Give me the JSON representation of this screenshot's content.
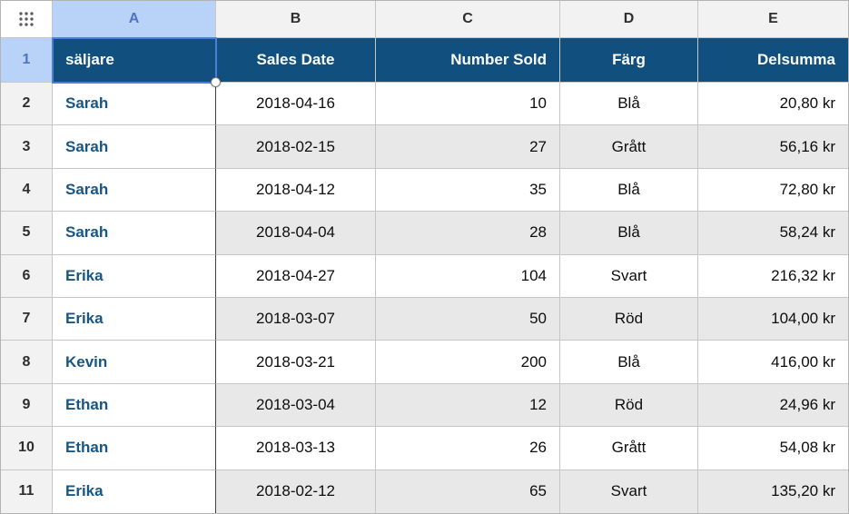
{
  "app": "spreadsheet",
  "colors": {
    "header_fill": "#11507E",
    "header_text": "#FFFFFF",
    "selected_frame_fill": "#B9D2F8",
    "selected_frame_text": "#4E74BE",
    "frame_fill": "#F2F2F3",
    "stripe_fill": "#E8E8E9",
    "name_text_blue": "#175685",
    "selection_blue": "#4C7DE0"
  },
  "frame": {
    "corner_icon": "table-handle-icon",
    "column_letters": [
      "A",
      "B",
      "C",
      "D",
      "E"
    ],
    "selected_column": "A",
    "row_numbers": [
      1,
      2,
      3,
      4,
      5,
      6,
      7,
      8,
      9,
      10,
      11
    ],
    "selected_row": 1,
    "selected_cell": "A1"
  },
  "table": {
    "headers": [
      "säljare",
      "Sales Date",
      "Number Sold",
      "Färg",
      "Delsumma"
    ],
    "rows": [
      [
        "Sarah",
        "2018-04-16",
        "10",
        "Blå",
        "20,80 kr"
      ],
      [
        "Sarah",
        "2018-02-15",
        "27",
        "Grått",
        "56,16 kr"
      ],
      [
        "Sarah",
        "2018-04-12",
        "35",
        "Blå",
        "72,80 kr"
      ],
      [
        "Sarah",
        "2018-04-04",
        "28",
        "Blå",
        "58,24 kr"
      ],
      [
        "Erika",
        "2018-04-27",
        "104",
        "Svart",
        "216,32 kr"
      ],
      [
        "Erika",
        "2018-03-07",
        "50",
        "Röd",
        "104,00 kr"
      ],
      [
        "Kevin",
        "2018-03-21",
        "200",
        "Blå",
        "416,00 kr"
      ],
      [
        "Ethan",
        "2018-03-04",
        "12",
        "Röd",
        "24,96 kr"
      ],
      [
        "Ethan",
        "2018-03-13",
        "26",
        "Grått",
        "54,08 kr"
      ],
      [
        "Erika",
        "2018-02-12",
        "65",
        "Svart",
        "135,20 kr"
      ]
    ]
  }
}
